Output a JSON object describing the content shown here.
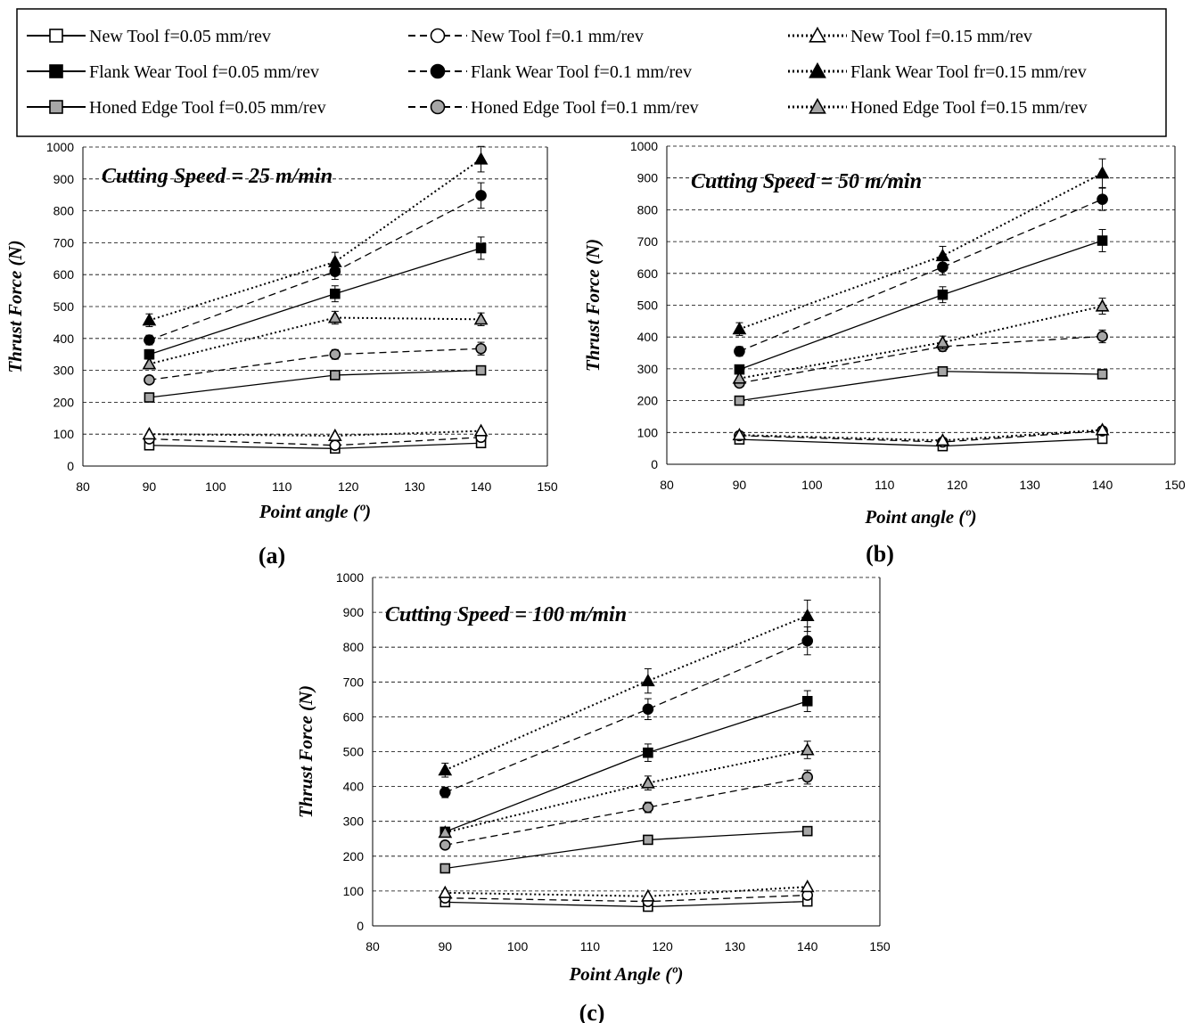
{
  "legend": [
    {
      "label": "New Tool f=0.05 mm/rev",
      "series": 0
    },
    {
      "label": "New Tool f=0.1 mm/rev",
      "series": 1
    },
    {
      "label": "New Tool f=0.15 mm/rev",
      "series": 2
    },
    {
      "label": "Flank Wear Tool f=0.05 mm/rev",
      "series": 3
    },
    {
      "label": "Flank Wear Tool f=0.1 mm/rev",
      "series": 4
    },
    {
      "label": "Flank Wear Tool fr=0.15 mm/rev",
      "series": 5
    },
    {
      "label": "Honed Edge Tool f=0.05 mm/rev",
      "series": 6
    },
    {
      "label": "Honed Edge Tool f=0.1 mm/rev",
      "series": 7
    },
    {
      "label": "Honed Edge Tool f=0.15 mm/rev",
      "series": 8
    }
  ],
  "styles": [
    {
      "marker": "square",
      "fill": "#ffffff",
      "dash": "solid",
      "color": "#000000"
    },
    {
      "marker": "circle",
      "fill": "#ffffff",
      "dash": "dashed",
      "color": "#000000"
    },
    {
      "marker": "triangle",
      "fill": "#ffffff",
      "dash": "dotted",
      "color": "#000000"
    },
    {
      "marker": "square",
      "fill": "#000000",
      "dash": "solid",
      "color": "#000000"
    },
    {
      "marker": "circle",
      "fill": "#000000",
      "dash": "dashed",
      "color": "#000000"
    },
    {
      "marker": "triangle",
      "fill": "#000000",
      "dash": "dotted",
      "color": "#000000"
    },
    {
      "marker": "square",
      "fill": "#a6a6a6",
      "dash": "solid",
      "color": "#000000"
    },
    {
      "marker": "circle",
      "fill": "#a6a6a6",
      "dash": "dashed",
      "color": "#000000"
    },
    {
      "marker": "triangle",
      "fill": "#a6a6a6",
      "dash": "dotted",
      "color": "#000000"
    }
  ],
  "chart_data": [
    {
      "type": "line",
      "panel": "(a)",
      "annotation": "Cutting Speed = 25 m/min",
      "xlabel": "Point angle (º)",
      "ylabel": "Thrust Force (N)",
      "xlim": [
        80,
        150
      ],
      "ylim": [
        0,
        1000
      ],
      "xticks": [
        80,
        90,
        100,
        110,
        120,
        130,
        140,
        150
      ],
      "yticks": [
        0,
        100,
        200,
        300,
        400,
        500,
        600,
        700,
        800,
        900,
        1000
      ],
      "grid": "horizontal dashed",
      "x": [
        90,
        118,
        140
      ],
      "series": [
        {
          "name": "New Tool f=0.05 mm/rev",
          "values": [
            65,
            55,
            72
          ],
          "err": [
            0,
            0,
            0
          ]
        },
        {
          "name": "New Tool f=0.1 mm/rev",
          "values": [
            85,
            65,
            90
          ],
          "err": [
            0,
            0,
            0
          ]
        },
        {
          "name": "New Tool f=0.15 mm/rev",
          "values": [
            100,
            95,
            110
          ],
          "err": [
            0,
            0,
            0
          ]
        },
        {
          "name": "Flank Wear Tool f=0.05 mm/rev",
          "values": [
            350,
            540,
            683
          ],
          "err": [
            15,
            25,
            35
          ]
        },
        {
          "name": "Flank Wear Tool f=0.1 mm/rev",
          "values": [
            395,
            610,
            848
          ],
          "err": [
            15,
            25,
            40
          ]
        },
        {
          "name": "Flank Wear Tool fr=0.15 mm/rev",
          "values": [
            457,
            640,
            962
          ],
          "err": [
            20,
            30,
            40
          ]
        },
        {
          "name": "Honed Edge Tool f=0.05 mm/rev",
          "values": [
            215,
            285,
            300
          ],
          "err": [
            0,
            0,
            0
          ]
        },
        {
          "name": "Honed Edge Tool f=0.1 mm/rev",
          "values": [
            270,
            350,
            368
          ],
          "err": [
            0,
            15,
            20
          ]
        },
        {
          "name": "Honed Edge Tool f=0.15 mm/rev",
          "values": [
            320,
            465,
            460
          ],
          "err": [
            0,
            20,
            20
          ]
        }
      ]
    },
    {
      "type": "line",
      "panel": "(b)",
      "annotation": "Cutting Speed = 50 m/min",
      "xlabel": "Point angle (º)",
      "ylabel": "Thrust   Force (N)",
      "xlim": [
        80,
        150
      ],
      "ylim": [
        0,
        1000
      ],
      "xticks": [
        80,
        90,
        100,
        110,
        120,
        130,
        140,
        150
      ],
      "yticks": [
        0,
        100,
        200,
        300,
        400,
        500,
        600,
        700,
        800,
        900,
        1000
      ],
      "grid": "horizontal dashed",
      "x": [
        90,
        118,
        140
      ],
      "series": [
        {
          "name": "New Tool f=0.05 mm/rev",
          "values": [
            78,
            57,
            80
          ],
          "err": [
            0,
            0,
            0
          ]
        },
        {
          "name": "New Tool f=0.1 mm/rev",
          "values": [
            90,
            70,
            105
          ],
          "err": [
            0,
            0,
            0
          ]
        },
        {
          "name": "New Tool f=0.15 mm/rev",
          "values": [
            92,
            75,
            108
          ],
          "err": [
            0,
            0,
            0
          ]
        },
        {
          "name": "Flank Wear Tool f=0.05 mm/rev",
          "values": [
            298,
            533,
            703
          ],
          "err": [
            0,
            25,
            35
          ]
        },
        {
          "name": "Flank Wear Tool f=0.1 mm/rev",
          "values": [
            355,
            620,
            833
          ],
          "err": [
            15,
            25,
            35
          ]
        },
        {
          "name": "Flank Wear Tool fr=0.15 mm/rev",
          "values": [
            425,
            655,
            915
          ],
          "err": [
            20,
            30,
            45
          ]
        },
        {
          "name": "Honed Edge Tool f=0.05 mm/rev",
          "values": [
            200,
            292,
            283
          ],
          "err": [
            0,
            0,
            0
          ]
        },
        {
          "name": "Honed Edge Tool f=0.1 mm/rev",
          "values": [
            255,
            370,
            402
          ],
          "err": [
            0,
            15,
            20
          ]
        },
        {
          "name": "Honed Edge Tool f=0.15 mm/rev",
          "values": [
            270,
            383,
            497
          ],
          "err": [
            0,
            20,
            25
          ]
        }
      ]
    },
    {
      "type": "line",
      "panel": "(c)",
      "annotation": "Cutting Speed = 100 m/min",
      "xlabel": "Point Angle (º)",
      "ylabel": "Thrust Force (N)",
      "xlim": [
        80,
        150
      ],
      "ylim": [
        0,
        1000
      ],
      "xticks": [
        80,
        90,
        100,
        110,
        120,
        130,
        140,
        150
      ],
      "yticks": [
        0,
        100,
        200,
        300,
        400,
        500,
        600,
        700,
        800,
        900,
        1000
      ],
      "grid": "horizontal dashed",
      "x": [
        90,
        118,
        140
      ],
      "series": [
        {
          "name": "New Tool f=0.05 mm/rev",
          "values": [
            68,
            55,
            70
          ],
          "err": [
            0,
            0,
            0
          ]
        },
        {
          "name": "New Tool f=0.1 mm/rev",
          "values": [
            80,
            70,
            88
          ],
          "err": [
            0,
            0,
            0
          ]
        },
        {
          "name": "New Tool f=0.15 mm/rev",
          "values": [
            95,
            85,
            112
          ],
          "err": [
            0,
            0,
            0
          ]
        },
        {
          "name": "Flank Wear Tool f=0.05 mm/rev",
          "values": [
            270,
            497,
            645
          ],
          "err": [
            0,
            25,
            30
          ]
        },
        {
          "name": "Flank Wear Tool f=0.1 mm/rev",
          "values": [
            383,
            622,
            818
          ],
          "err": [
            15,
            30,
            40
          ]
        },
        {
          "name": "Flank Wear Tool fr=0.15 mm/rev",
          "values": [
            447,
            703,
            890
          ],
          "err": [
            20,
            35,
            45
          ]
        },
        {
          "name": "Honed Edge Tool f=0.05 mm/rev",
          "values": [
            165,
            247,
            272
          ],
          "err": [
            0,
            0,
            0
          ]
        },
        {
          "name": "Honed Edge Tool f=0.1 mm/rev",
          "values": [
            232,
            340,
            427
          ],
          "err": [
            0,
            15,
            20
          ]
        },
        {
          "name": "Honed Edge Tool f=0.15 mm/rev",
          "values": [
            268,
            410,
            505
          ],
          "err": [
            0,
            20,
            25
          ]
        }
      ]
    }
  ]
}
